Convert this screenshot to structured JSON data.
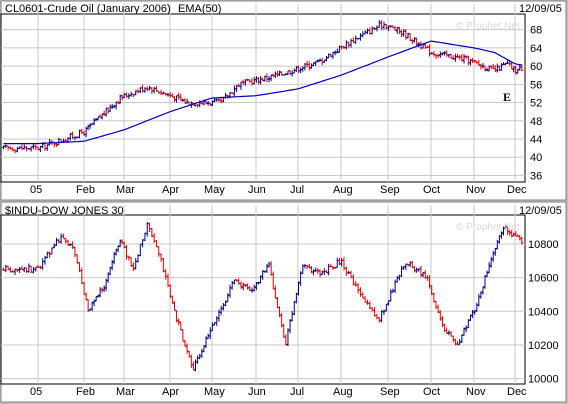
{
  "chart_data": [
    {
      "type": "bar",
      "title": "CL0601-Crude Oil (January 2006)",
      "indicator": "EMA(50)",
      "date": "12/09/05",
      "watermark": "© Prophet.Net",
      "annotation": "E",
      "x_labels": [
        "05",
        "Feb",
        "Mar",
        "Apr",
        "May",
        "Jun",
        "Jul",
        "Aug",
        "Sep",
        "Oct",
        "Nov",
        "Dec"
      ],
      "y_ticks": [
        36,
        40,
        44,
        48,
        52,
        56,
        60,
        64,
        68
      ],
      "ylim": [
        35,
        71
      ],
      "grid": true,
      "colors": {
        "up": "#000080",
        "down": "#e00000",
        "ema": "#0000c0"
      },
      "x_months": [
        0,
        1,
        2,
        3,
        4,
        5,
        6,
        7,
        8,
        9,
        10,
        11,
        11.3
      ],
      "close_keypoints": [
        42,
        45.5,
        53,
        55.5,
        52,
        52,
        56,
        58,
        61,
        66,
        69.3,
        67,
        63,
        61.5,
        59,
        60.5,
        59,
        60
      ],
      "close_key_x": [
        0,
        1,
        1.9,
        2.5,
        3.4,
        4.2,
        4.6,
        5.5,
        6.5,
        7.3,
        7.9,
        8.4,
        9,
        9.8,
        10.5,
        10.8,
        11,
        11.3
      ],
      "ema_keypoints": [
        43,
        43.5,
        46,
        50,
        53,
        53.5,
        55,
        58,
        62,
        65.5,
        64,
        63,
        60.5,
        60
      ],
      "ema_key_x": [
        0,
        1,
        2,
        3,
        4,
        5,
        6,
        7,
        8,
        9,
        10,
        10.5,
        11,
        11.3
      ]
    },
    {
      "type": "bar",
      "title": "$INDU-DOW JONES 30",
      "date": "12/09/05",
      "watermark": "© Prophet.Net",
      "x_labels": [
        "05",
        "Feb",
        "Mar",
        "Apr",
        "May",
        "Jun",
        "Jul",
        "Aug",
        "Sep",
        "Oct",
        "Nov",
        "Dec"
      ],
      "y_ticks": [
        10000,
        10200,
        10400,
        10600,
        10800
      ],
      "ylim": [
        9980,
        10960
      ],
      "grid": true,
      "colors": {
        "up": "#000080",
        "down": "#e00000"
      },
      "close_keypoints": [
        10650,
        10850,
        10750,
        10400,
        10550,
        10830,
        10650,
        10920,
        10700,
        10400,
        10050,
        10300,
        10580,
        10520,
        10680,
        10200,
        10680,
        10620,
        10700,
        10500,
        10350,
        10700,
        10600,
        10300,
        10200,
        10400,
        10900,
        10850,
        10780
      ],
      "close_key_x": [
        0,
        0.5,
        0.8,
        1.1,
        1.5,
        1.9,
        2.2,
        2.5,
        2.8,
        3.1,
        3.55,
        4.0,
        4.5,
        4.9,
        5.3,
        5.7,
        6.1,
        6.5,
        7.0,
        7.4,
        7.8,
        8.4,
        8.9,
        9.3,
        9.6,
        10.0,
        10.7,
        11.0,
        11.3
      ]
    }
  ]
}
